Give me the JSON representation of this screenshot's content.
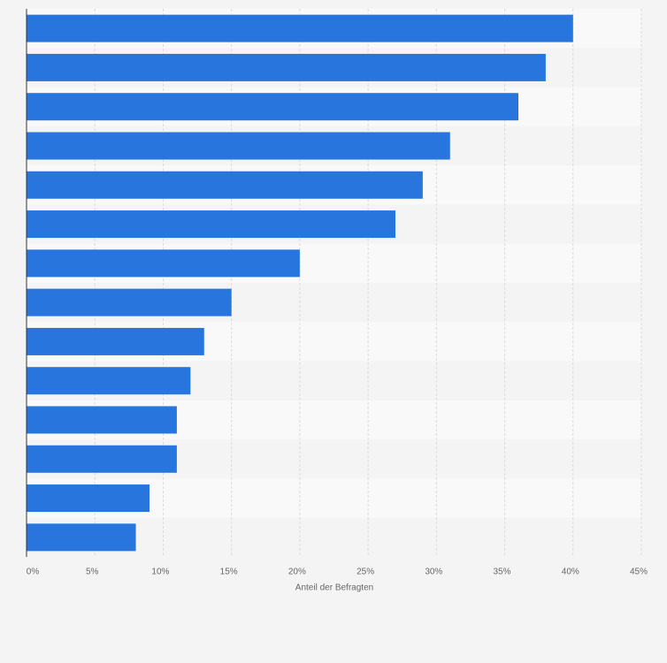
{
  "chart_data": {
    "type": "barh",
    "x_label": "Anteil der Befragten",
    "categories": [
      null,
      null,
      null,
      null,
      null,
      null,
      null,
      null,
      null,
      null,
      null,
      null,
      null,
      null
    ],
    "values": [
      40,
      38,
      36,
      31,
      29,
      27,
      20,
      15,
      13,
      12,
      11,
      11,
      9,
      8
    ],
    "color": "#2876dd",
    "xlim": [
      0,
      45
    ],
    "xticks": [
      {
        "value": 0,
        "label": "0%"
      },
      {
        "value": 5,
        "label": "5%"
      },
      {
        "value": 10,
        "label": "10%"
      },
      {
        "value": 15,
        "label": "15%"
      },
      {
        "value": 20,
        "label": "20%"
      },
      {
        "value": 25,
        "label": "25%"
      },
      {
        "value": 30,
        "label": "30%"
      },
      {
        "value": 35,
        "label": "35%"
      },
      {
        "value": 40,
        "label": "40%"
      },
      {
        "value": 45,
        "label": "45%"
      }
    ],
    "grid": true
  }
}
